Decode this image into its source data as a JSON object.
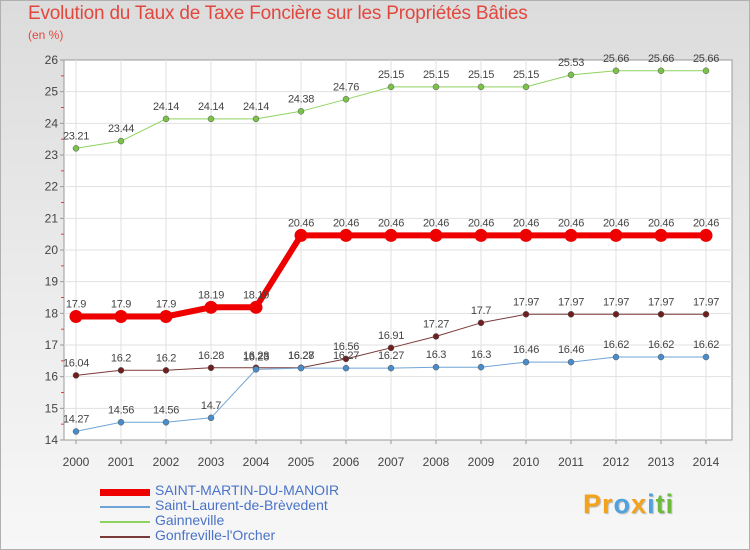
{
  "title": "Evolution du Taux de Taxe Foncière sur les Propriétés Bâties",
  "unit_label": "(en %)",
  "logo": {
    "letters": [
      {
        "char": "P",
        "color": "#f2a21b"
      },
      {
        "char": "r",
        "color": "#f2a21b"
      },
      {
        "char": "o",
        "color": "#4ea2de"
      },
      {
        "char": "x",
        "color": "#f2a21b"
      },
      {
        "char": "i",
        "color": "#4ea2de"
      },
      {
        "char": "t",
        "color": "#6dbb3c"
      },
      {
        "char": "i",
        "color": "#6dbb3c"
      }
    ]
  },
  "chart_data": {
    "type": "line",
    "title": "Evolution du Taux de Taxe Foncière sur les Propriétés Bâties",
    "ylabel": "(en %)",
    "xlabel": "",
    "ylim": [
      14,
      26
    ],
    "yticks": [
      "14",
      "15",
      "16",
      "17",
      "18",
      "19",
      "20",
      "21",
      "22",
      "23",
      "24",
      "25",
      "26"
    ],
    "x": [
      "2000",
      "2001",
      "2002",
      "2003",
      "2004",
      "2005",
      "2006",
      "2007",
      "2008",
      "2009",
      "2010",
      "2011",
      "2012",
      "2013",
      "2014"
    ],
    "grid": true,
    "legend_position": "bottom-left",
    "series": [
      {
        "name": "Gainneville",
        "color": "#8ed35f",
        "marker_color": "#7bc24a",
        "width": 1,
        "values": [
          23.21,
          23.44,
          24.14,
          24.14,
          24.14,
          24.38,
          24.76,
          25.15,
          25.15,
          25.15,
          25.15,
          25.53,
          25.66,
          25.66,
          25.66
        ],
        "labels": [
          "23.21",
          "23.44",
          "24.14",
          "24.14",
          "24.14",
          "24.38",
          "24.76",
          "25.15",
          "25.15",
          "25.15",
          "25.15",
          "25.53",
          "25.66",
          "25.66",
          "25.66"
        ]
      },
      {
        "name": "SAINT-MARTIN-DU-MANOIR",
        "color": "#ee0000",
        "marker_color": "#ee0000",
        "width": 6,
        "values": [
          17.9,
          17.9,
          17.9,
          18.19,
          18.19,
          20.46,
          20.46,
          20.46,
          20.46,
          20.46,
          20.46,
          20.46,
          20.46,
          20.46,
          20.46
        ],
        "labels": [
          "17.9",
          "17.9",
          "17.9",
          "18.19",
          "18.19",
          "20.46",
          "20.46",
          "20.46",
          "20.46",
          "20.46",
          "20.46",
          "20.46",
          "20.46",
          "20.46",
          "20.46"
        ]
      },
      {
        "name": "Gonfreville-l'Orcher",
        "color": "#7a3a3a",
        "marker_color": "#6e1f1f",
        "width": 1,
        "values": [
          16.04,
          16.2,
          16.2,
          16.28,
          16.28,
          16.28,
          16.56,
          16.91,
          17.27,
          17.7,
          17.97,
          17.97,
          17.97,
          17.97,
          17.97
        ],
        "labels": [
          "16.04",
          "16.2",
          "16.2",
          "16.28",
          "16.28",
          "16.28",
          "16.56",
          "16.91",
          "17.27",
          "17.7",
          "17.97",
          "17.97",
          "17.97",
          "17.97",
          "17.97"
        ]
      },
      {
        "name": "Saint-Laurent-de-Brèvedent",
        "color": "#6fa5d6",
        "marker_color": "#4a8cc9",
        "width": 1,
        "values": [
          14.27,
          14.56,
          14.56,
          14.7,
          16.23,
          16.27,
          16.27,
          16.27,
          16.3,
          16.3,
          16.46,
          16.46,
          16.62,
          16.62,
          16.62
        ],
        "labels": [
          "14.27",
          "14.56",
          "14.56",
          "14.7",
          "16.23",
          "16.27",
          "16.27",
          "16.27",
          "16.3",
          "16.3",
          "16.46",
          "16.46",
          "16.62",
          "16.62",
          "16.62"
        ]
      }
    ]
  },
  "legend": [
    {
      "name": "SAINT-MARTIN-DU-MANOIR",
      "color": "#ee0000",
      "thickness": 7
    },
    {
      "name": "Saint-Laurent-de-Brèvedent",
      "color": "#6fa5d6",
      "thickness": 2
    },
    {
      "name": "Gainneville",
      "color": "#8ed35f",
      "thickness": 2
    },
    {
      "name": "Gonfreville-l'Orcher",
      "color": "#7a3a3a",
      "thickness": 2
    }
  ]
}
